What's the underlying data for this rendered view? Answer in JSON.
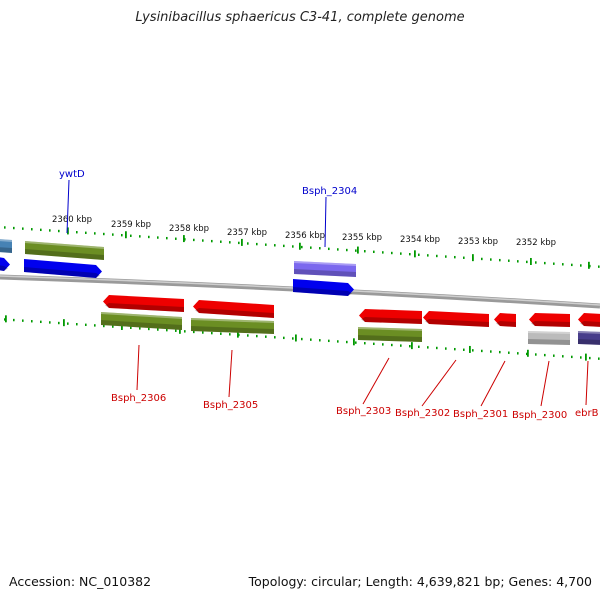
{
  "title": "Lysinibacillus sphaericus C3-41, complete genome",
  "footer": {
    "accession": "Accession: NC_010382",
    "summary": "Topology: circular; Length: 4,639,821 bp; Genes: 4,700"
  },
  "scale_ticks": [
    "2360 kbp",
    "2359 kbp",
    "2358 kbp",
    "2357 kbp",
    "2356 kbp",
    "2355 kbp",
    "2354 kbp",
    "2353 kbp",
    "2352 kbp"
  ],
  "gene_labels": [
    {
      "name": "ywtD",
      "color": "#0000cc"
    },
    {
      "name": "Bsph_2304",
      "color": "#0000cc"
    },
    {
      "name": "Bsph_2306",
      "color": "#cc0000"
    },
    {
      "name": "Bsph_2305",
      "color": "#cc0000"
    },
    {
      "name": "Bsph_2303",
      "color": "#cc0000"
    },
    {
      "name": "Bsph_2302",
      "color": "#cc0000"
    },
    {
      "name": "Bsph_2301",
      "color": "#cc0000"
    },
    {
      "name": "Bsph_2300",
      "color": "#cc0000"
    },
    {
      "name": "ebrB",
      "color": "#cc0000"
    }
  ],
  "colors": {
    "forward_cds": "#0000ee",
    "reverse_cds": "#ee0000",
    "cog_green": "#6b8e23",
    "cog_purple": "#7b68ee",
    "cog_grey": "#bbbbbb",
    "cog_navy": "#483d8b",
    "cog_steel": "#4682b4",
    "tick_green": "#009900",
    "backbone": "#888888"
  }
}
